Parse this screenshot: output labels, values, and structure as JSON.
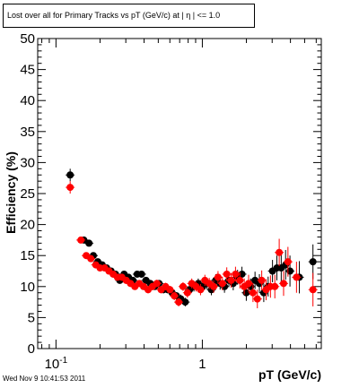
{
  "chart_data": {
    "type": "scatter",
    "title": "Lost over all for Primary Tracks vs pT (GeV/c) at |  η | <= 1.0",
    "xlabel": "pT (GeV/c)",
    "ylabel": "Efficiency (%)",
    "xscale": "log",
    "xlim": [
      0.075,
      6.5
    ],
    "ylim": [
      0,
      50
    ],
    "y_ticks": [
      "0",
      "5",
      "10",
      "15",
      "20",
      "25",
      "30",
      "35",
      "40",
      "45",
      "50"
    ],
    "x_tick_labels": [
      {
        "value": 0.1,
        "base": "10",
        "exp": "-1"
      },
      {
        "value": 1,
        "base": "1",
        "exp": ""
      }
    ],
    "grid": false,
    "colors": {
      "series_black": "#000000",
      "series_red": "#ff0000"
    },
    "series": [
      {
        "color": "#000000",
        "points": [
          [
            0.125,
            28.0,
            1.0
          ],
          [
            0.155,
            17.5,
            0.5
          ],
          [
            0.168,
            17.0,
            0.5
          ],
          [
            0.18,
            15.0,
            0.5
          ],
          [
            0.193,
            14.0,
            0.5
          ],
          [
            0.207,
            13.5,
            0.5
          ],
          [
            0.222,
            13.0,
            0.5
          ],
          [
            0.238,
            12.5,
            0.5
          ],
          [
            0.255,
            12.0,
            0.5
          ],
          [
            0.273,
            11.0,
            0.5
          ],
          [
            0.292,
            12.0,
            0.5
          ],
          [
            0.313,
            11.5,
            0.5
          ],
          [
            0.335,
            11.0,
            0.5
          ],
          [
            0.359,
            12.0,
            0.5
          ],
          [
            0.384,
            12.0,
            0.5
          ],
          [
            0.412,
            11.0,
            0.5
          ],
          [
            0.441,
            10.5,
            0.5
          ],
          [
            0.472,
            10.0,
            0.5
          ],
          [
            0.506,
            10.5,
            0.5
          ],
          [
            0.542,
            9.5,
            0.6
          ],
          [
            0.58,
            9.5,
            0.6
          ],
          [
            0.622,
            9.0,
            0.6
          ],
          [
            0.666,
            8.5,
            0.6
          ],
          [
            0.713,
            8.0,
            0.7
          ],
          [
            0.764,
            7.5,
            0.7
          ],
          [
            0.818,
            9.5,
            0.7
          ],
          [
            0.876,
            10.0,
            0.8
          ],
          [
            0.938,
            10.5,
            0.8
          ],
          [
            1.005,
            10.0,
            0.8
          ],
          [
            1.077,
            10.5,
            0.9
          ],
          [
            1.153,
            9.5,
            0.9
          ],
          [
            1.235,
            11.0,
            1.0
          ],
          [
            1.323,
            10.5,
            1.0
          ],
          [
            1.417,
            10.0,
            1.0
          ],
          [
            1.518,
            11.0,
            1.1
          ],
          [
            1.626,
            10.5,
            1.1
          ],
          [
            1.741,
            11.5,
            1.2
          ],
          [
            1.865,
            12.0,
            1.2
          ],
          [
            1.997,
            9.0,
            1.3
          ],
          [
            2.139,
            10.0,
            1.3
          ],
          [
            2.291,
            11.0,
            1.4
          ],
          [
            2.454,
            10.5,
            1.5
          ],
          [
            2.629,
            9.0,
            1.5
          ],
          [
            2.816,
            10.0,
            1.6
          ],
          [
            3.016,
            12.5,
            1.8
          ],
          [
            3.231,
            13.0,
            2.0
          ],
          [
            3.46,
            13.0,
            2.2
          ],
          [
            3.706,
            13.5,
            2.4
          ],
          [
            3.97,
            12.5,
            2.5
          ],
          [
            4.6,
            11.5,
            2.6
          ],
          [
            5.7,
            14.0,
            2.8
          ]
        ]
      },
      {
        "color": "#ff0000",
        "points": [
          [
            0.125,
            26.0,
            1.0
          ],
          [
            0.148,
            17.5,
            0.5
          ],
          [
            0.161,
            15.0,
            0.5
          ],
          [
            0.173,
            14.5,
            0.5
          ],
          [
            0.187,
            13.5,
            0.5
          ],
          [
            0.2,
            13.0,
            0.5
          ],
          [
            0.215,
            13.0,
            0.5
          ],
          [
            0.23,
            12.5,
            0.5
          ],
          [
            0.246,
            12.0,
            0.5
          ],
          [
            0.263,
            11.5,
            0.5
          ],
          [
            0.282,
            11.5,
            0.5
          ],
          [
            0.302,
            11.0,
            0.5
          ],
          [
            0.323,
            10.5,
            0.5
          ],
          [
            0.346,
            10.0,
            0.5
          ],
          [
            0.371,
            10.5,
            0.5
          ],
          [
            0.397,
            10.0,
            0.5
          ],
          [
            0.426,
            9.5,
            0.6
          ],
          [
            0.456,
            10.0,
            0.6
          ],
          [
            0.489,
            10.5,
            0.6
          ],
          [
            0.523,
            9.5,
            0.6
          ],
          [
            0.561,
            10.0,
            0.6
          ],
          [
            0.601,
            9.5,
            0.6
          ],
          [
            0.643,
            8.5,
            0.7
          ],
          [
            0.689,
            7.5,
            0.7
          ],
          [
            0.738,
            10.0,
            0.7
          ],
          [
            0.791,
            9.0,
            0.8
          ],
          [
            0.847,
            10.5,
            0.8
          ],
          [
            0.907,
            10.0,
            0.8
          ],
          [
            0.972,
            9.5,
            0.9
          ],
          [
            1.041,
            11.0,
            0.9
          ],
          [
            1.115,
            10.5,
            0.9
          ],
          [
            1.195,
            10.0,
            1.0
          ],
          [
            1.28,
            11.5,
            1.0
          ],
          [
            1.371,
            10.5,
            1.1
          ],
          [
            1.469,
            12.0,
            1.1
          ],
          [
            1.573,
            11.0,
            1.2
          ],
          [
            1.685,
            12.0,
            1.2
          ],
          [
            1.805,
            11.0,
            1.3
          ],
          [
            1.934,
            10.0,
            1.3
          ],
          [
            2.071,
            10.5,
            1.4
          ],
          [
            2.219,
            9.0,
            1.5
          ],
          [
            2.377,
            8.0,
            1.5
          ],
          [
            2.546,
            11.0,
            1.6
          ],
          [
            2.727,
            9.5,
            1.7
          ],
          [
            2.921,
            10.0,
            1.8
          ],
          [
            3.129,
            10.0,
            1.9
          ],
          [
            3.352,
            15.5,
            2.2
          ],
          [
            3.591,
            10.5,
            2.0
          ],
          [
            3.846,
            14.0,
            2.4
          ],
          [
            4.4,
            11.5,
            2.5
          ],
          [
            5.7,
            9.5,
            2.7
          ]
        ]
      }
    ]
  },
  "footer_text": "Wed Nov  9 10:41:53 2011"
}
